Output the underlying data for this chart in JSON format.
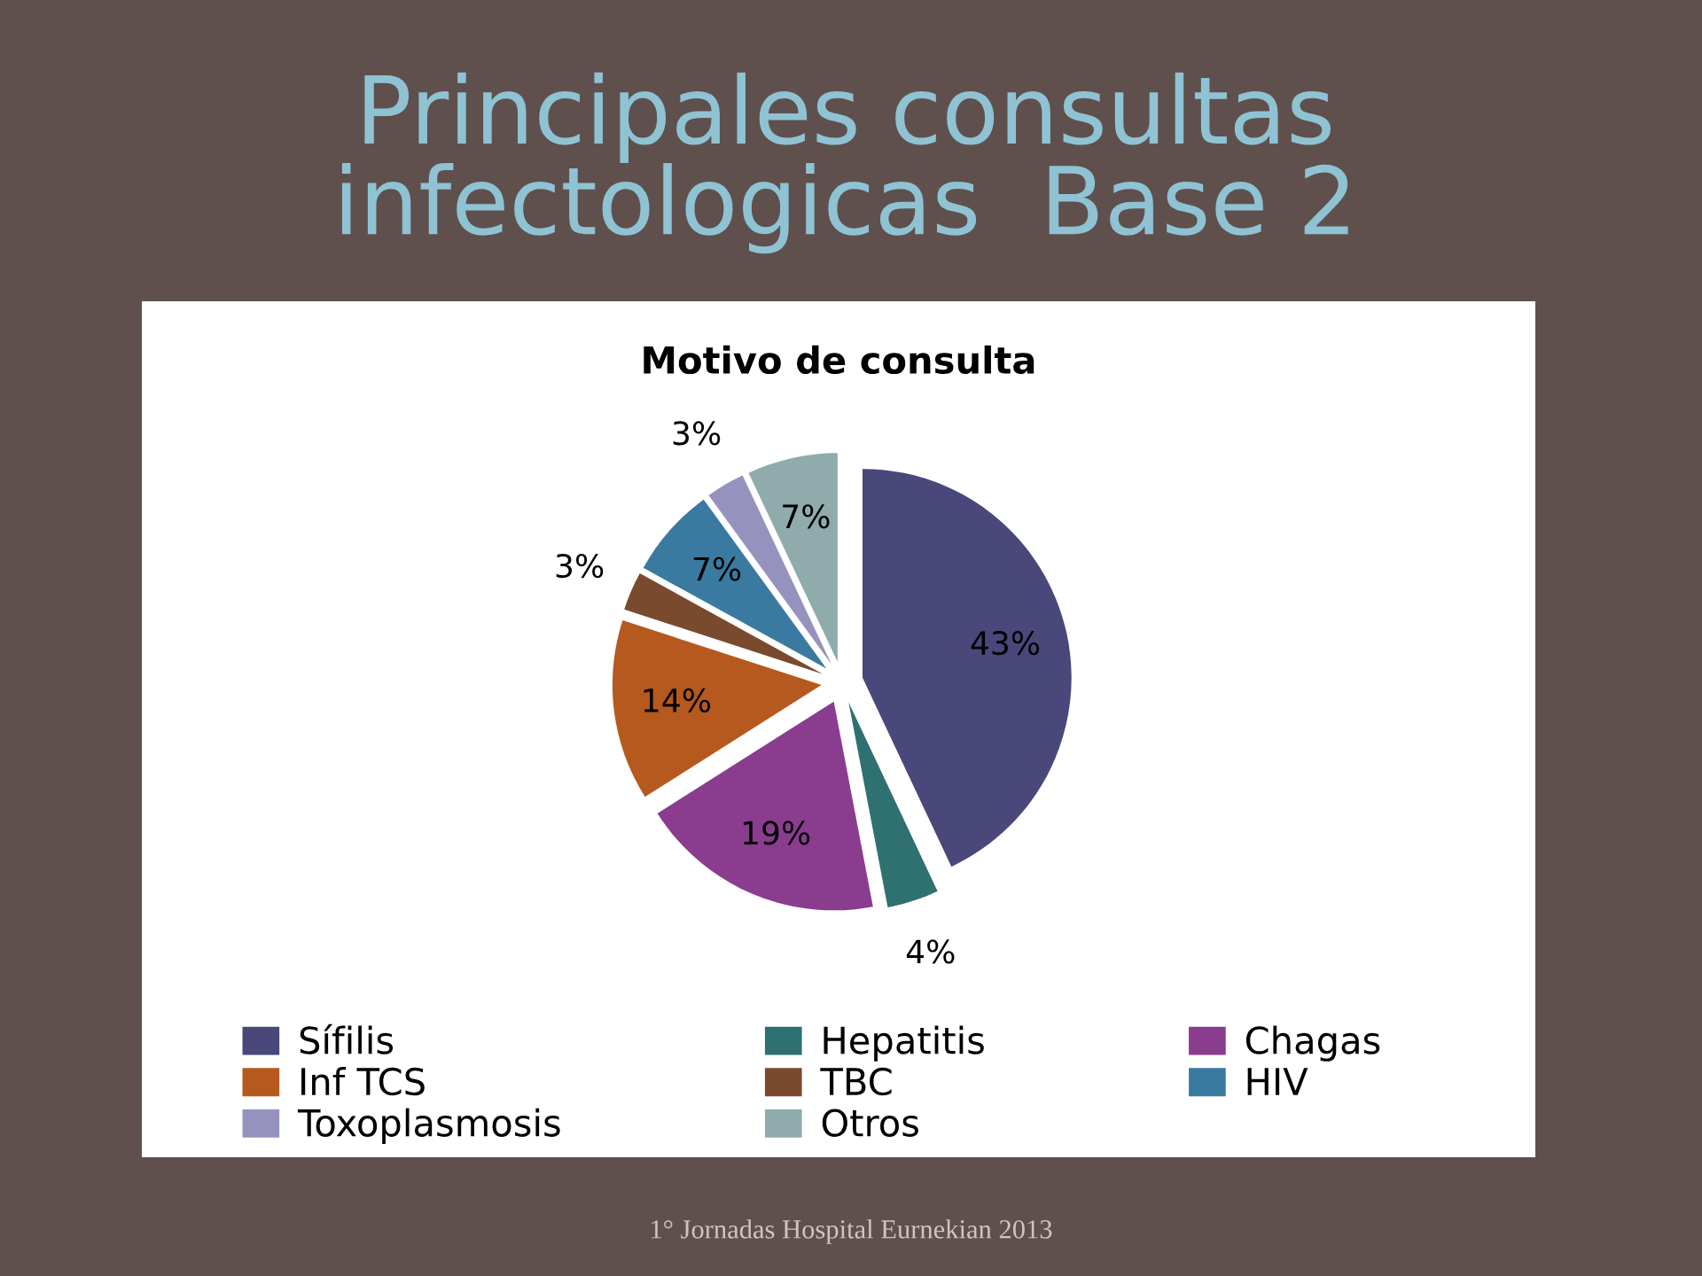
{
  "chart_data": {
    "type": "pie",
    "title": "Principales consultas infectologicas  Base 2",
    "subtitle": "Motivo de consulta",
    "categories": [
      "Sífilis",
      "Hepatitis",
      "Chagas",
      "Inf TCS",
      "TBC",
      "HIV",
      "Toxoplasmosis",
      "Otros"
    ],
    "values": [
      43,
      4,
      19,
      14,
      3,
      7,
      3,
      7
    ],
    "colors": [
      "#4a477a",
      "#2f7070",
      "#8a3d8e",
      "#b5591f",
      "#7a4a2e",
      "#3b7aa0",
      "#9593bd",
      "#8fabab"
    ],
    "value_labels": [
      "43%",
      "4%",
      "19%",
      "14%",
      "3%",
      "7%",
      "3%",
      "7%"
    ],
    "legend": "bottom",
    "annotations": [
      "1° Jornadas Hospital Eurnekian 2013"
    ]
  }
}
